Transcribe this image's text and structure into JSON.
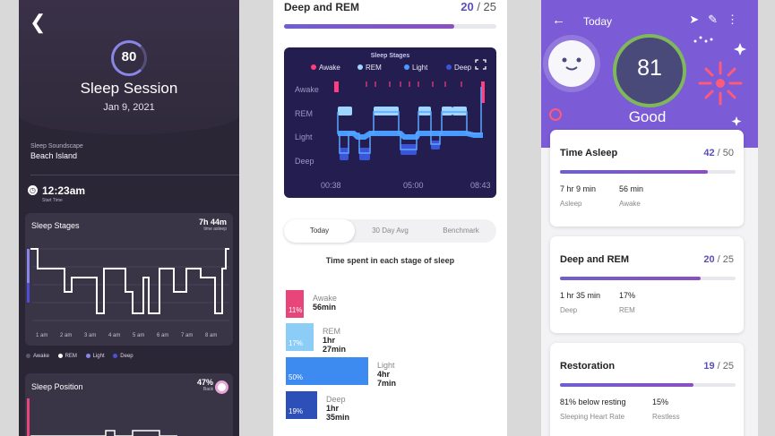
{
  "panel1": {
    "score": "80",
    "title": "Sleep Session",
    "date": "Jan 9, 2021",
    "soundscape_label": "Sleep Soundscape",
    "soundscape_value": "Beach Island",
    "start_time": "12:23am",
    "start_time_label": "Start Time",
    "stages_card": {
      "title": "Sleep Stages",
      "total": "7h 44m",
      "total_label": "time asleep",
      "ticks": [
        "1 am",
        "2 am",
        "3 am",
        "4 am",
        "5 am",
        "6 am",
        "7 am",
        "8 am"
      ]
    },
    "legend": [
      {
        "label": "Awake",
        "color": "#5b5670"
      },
      {
        "label": "REM",
        "color": "#ffffff"
      },
      {
        "label": "Light",
        "color": "#8a86e8"
      },
      {
        "label": "Deep",
        "color": "#4f4fd6"
      }
    ],
    "position_card": {
      "title": "Sleep Position",
      "value": "47%",
      "value_label": "Back"
    }
  },
  "panel2": {
    "header_title": "Deep and REM",
    "header_score": "20",
    "header_max": "/ 25",
    "header_progress": 0.8,
    "chart_data": {
      "type": "line",
      "title": "Sleep Stages",
      "legend": [
        {
          "name": "Awake",
          "color": "#ff3d7f"
        },
        {
          "name": "REM",
          "color": "#9fd6ff"
        },
        {
          "name": "Light",
          "color": "#4a9bff"
        },
        {
          "name": "Deep",
          "color": "#3a55d9"
        }
      ],
      "y_categories": [
        "Awake",
        "REM",
        "Light",
        "Deep"
      ],
      "x_ticks": [
        "00:38",
        "05:00",
        "08:43"
      ]
    },
    "tabs": [
      "Today",
      "30 Day Avg",
      "Benchmark"
    ],
    "active_tab": 0,
    "subheading": "Time spent in each stage of sleep",
    "stages": [
      {
        "name": "Awake",
        "pct": "11%",
        "pct_value": 11,
        "duration": "56min",
        "color": "#e8457a"
      },
      {
        "name": "REM",
        "pct": "17%",
        "pct_value": 17,
        "duration": "1hr 27min",
        "color": "#8ccdf8"
      },
      {
        "name": "Light",
        "pct": "50%",
        "pct_value": 50,
        "duration": "4hr 7min",
        "color": "#3d8bf0"
      },
      {
        "name": "Deep",
        "pct": "19%",
        "pct_value": 19,
        "duration": "1hr 35min",
        "color": "#2c4fb8"
      }
    ]
  },
  "panel3": {
    "title": "Today",
    "score": "81",
    "rating": "Good",
    "cards": [
      {
        "title": "Time Asleep",
        "score": "42",
        "max": "/ 50",
        "progress": 0.84,
        "metrics": [
          {
            "value": "7 hr 9 min",
            "label": "Asleep"
          },
          {
            "value": "56 min",
            "label": "Awake"
          }
        ]
      },
      {
        "title": "Deep and REM",
        "score": "20",
        "max": "/ 25",
        "progress": 0.8,
        "metrics": [
          {
            "value": "1 hr 35 min",
            "label": "Deep"
          },
          {
            "value": "17%",
            "label": "REM"
          }
        ]
      },
      {
        "title": "Restoration",
        "score": "19",
        "max": "/ 25",
        "progress": 0.76,
        "metrics": [
          {
            "value": "81% below resting",
            "label": "Sleeping Heart Rate"
          },
          {
            "value": "15%",
            "label": "Restless"
          }
        ]
      }
    ]
  }
}
